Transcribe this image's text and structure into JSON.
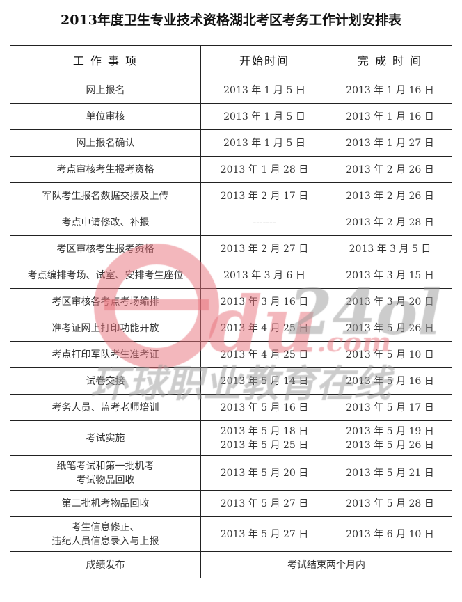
{
  "title": "2013年度卫生专业技术资格湖北考区考务工作计划安排表",
  "headers": [
    "工 作 事 项",
    "开始时间",
    "完 成 时 间"
  ],
  "rows": [
    {
      "task": "网上报名",
      "start": [
        "2013 年 1 月 5 日"
      ],
      "end": [
        "2013 年 1 月 16 日"
      ]
    },
    {
      "task": "单位审核",
      "start": [
        "2013 年 1 月 5 日"
      ],
      "end": [
        "2013 年 1 月 16 日"
      ]
    },
    {
      "task": "网上报名确认",
      "start": [
        "2013 年 1 月 5 日"
      ],
      "end": [
        "2013 年 1 月 27 日"
      ]
    },
    {
      "task": "考点审核考生报考资格",
      "start": [
        "2013 年 1 月 28 日"
      ],
      "end": [
        "2013 年 2 月 26 日"
      ]
    },
    {
      "task": "军队考生报名数据交接及上传",
      "start": [
        "2013 年 2 月 17 日"
      ],
      "end": [
        "2013 年 2 月 26 日"
      ]
    },
    {
      "task": "考点申请修改、补报",
      "start": [
        "-------"
      ],
      "end": [
        "2013 年 2 月 28 日"
      ]
    },
    {
      "task": "考区审核考生报考资格",
      "start": [
        "2013 年 2 月 27 日"
      ],
      "end": [
        "2013 年 3 月 5 日"
      ]
    },
    {
      "task": "考点编排考场、试室、安排考生座位",
      "start": [
        "2013 年 3 月 6 日"
      ],
      "end": [
        "2013 年 3 月 15 日"
      ]
    },
    {
      "task": "考区审核各考点考场编排",
      "start": [
        "2013 年 3 月 16 日"
      ],
      "end": [
        "2013 年 3 月 20 日"
      ]
    },
    {
      "task": "准考证网上打印功能开放",
      "start": [
        "2013 年 4 月 25 日"
      ],
      "end": [
        "2013 年 5 月 26 日"
      ]
    },
    {
      "task": "考点打印军队考生准考证",
      "start": [
        "2013 年 4 月 25 日"
      ],
      "end": [
        "2013 年 5 月 10 日"
      ]
    },
    {
      "task": "试卷交接",
      "start": [
        "2013 年 5 月 14 日"
      ],
      "end": [
        "2013 年 5 月 16 日"
      ]
    },
    {
      "task": "考务人员、监考老师培训",
      "start": [
        "2013 年 5 月 16 日"
      ],
      "end": [
        "2013 年 5 月 17 日"
      ]
    },
    {
      "task": "考试实施",
      "start": [
        "2013 年 5 月 18 日",
        "2013 年 5 月 25 日"
      ],
      "end": [
        "2013 年 5 月 19 日",
        "2013 年 5 月 26 日"
      ]
    },
    {
      "task": "纸笔考试和第一批机考\n考试物品回收",
      "start": [
        "2013 年 5 月 20 日"
      ],
      "end": [
        "2013 年 5 月 21 日"
      ]
    },
    {
      "task": "第二批机考物品回收",
      "start": [
        "2013 年 5 月 27 日"
      ],
      "end": [
        "2013 年 5 月 28 日"
      ]
    },
    {
      "task": "考生信息修正、\n违纪人员信息录入与上报",
      "start": [
        "2013 年 5 月 27 日"
      ],
      "end": [
        "2013 年 6 月 10 日"
      ]
    }
  ],
  "last_row": {
    "task": "成绩发布",
    "span": "考试结束两个月内"
  },
  "watermark": {
    "logo": "edu24ol",
    "domain": ".com",
    "cn": "环球职业教育在线",
    "pink": "#e8707a",
    "gray": "#9a9a9a"
  }
}
